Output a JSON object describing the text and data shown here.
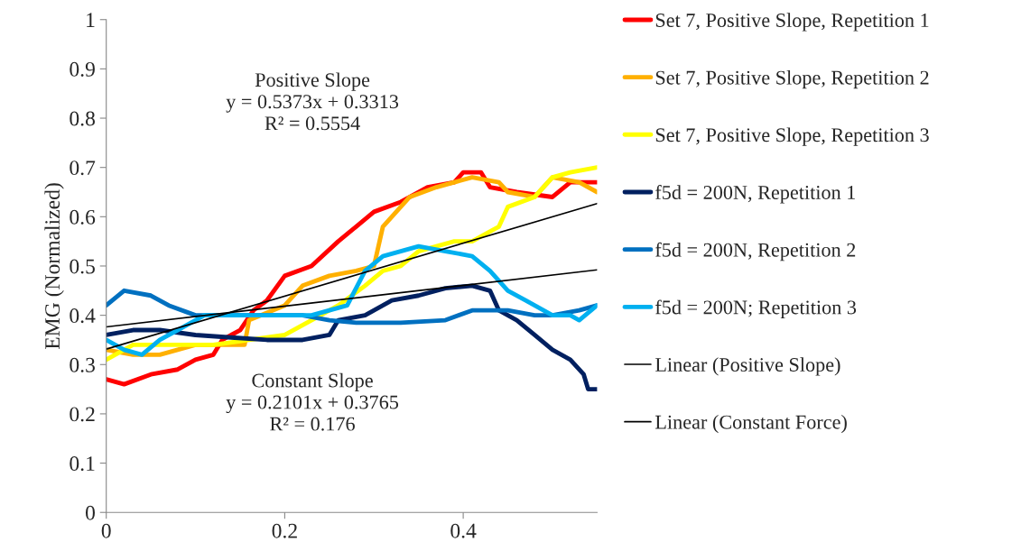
{
  "chart_data": {
    "type": "line",
    "ylabel": "EMG (Normalized)",
    "xlim": [
      0,
      0.55
    ],
    "xticks": [
      0,
      0.2,
      0.4
    ],
    "ylim": [
      0,
      1
    ],
    "yticks": [
      0,
      0.1,
      0.2,
      0.3,
      0.4,
      0.5,
      0.6,
      0.7,
      0.8,
      0.9,
      1
    ],
    "grid": false,
    "legend": "right",
    "marker": "none",
    "annotations": [
      "Positive Slope\ny = 0.5373x + 0.3313\nR² = 0.5554",
      "Constant Slope\ny = 0.2101x + 0.3765\nR² = 0.176"
    ],
    "series": [
      {
        "name": "Set 7, Positive Slope, Repetition 1",
        "color": "#ff0000",
        "x": [
          0,
          0.02,
          0.05,
          0.08,
          0.1,
          0.12,
          0.13,
          0.15,
          0.165,
          0.18,
          0.2,
          0.23,
          0.26,
          0.28,
          0.3,
          0.33,
          0.36,
          0.39,
          0.4,
          0.42,
          0.43,
          0.46,
          0.5,
          0.52,
          0.55
        ],
        "values": [
          0.27,
          0.26,
          0.28,
          0.29,
          0.31,
          0.32,
          0.35,
          0.37,
          0.41,
          0.43,
          0.48,
          0.5,
          0.55,
          0.58,
          0.61,
          0.63,
          0.66,
          0.67,
          0.69,
          0.69,
          0.66,
          0.65,
          0.64,
          0.67,
          0.67
        ]
      },
      {
        "name": "Set 7, Positive Slope, Repetition 2",
        "color": "#ffb000",
        "x": [
          0,
          0.03,
          0.06,
          0.1,
          0.12,
          0.155,
          0.16,
          0.2,
          0.22,
          0.25,
          0.28,
          0.3,
          0.31,
          0.32,
          0.34,
          0.37,
          0.39,
          0.41,
          0.44,
          0.45,
          0.48,
          0.5,
          0.53,
          0.55
        ],
        "values": [
          0.33,
          0.32,
          0.32,
          0.34,
          0.34,
          0.34,
          0.39,
          0.42,
          0.46,
          0.48,
          0.49,
          0.5,
          0.58,
          0.6,
          0.64,
          0.66,
          0.67,
          0.68,
          0.67,
          0.65,
          0.64,
          0.68,
          0.67,
          0.65
        ]
      },
      {
        "name": "Set 7, Positive Slope, Repetition 3",
        "color": "#ffff00",
        "x": [
          0,
          0.03,
          0.08,
          0.12,
          0.16,
          0.2,
          0.23,
          0.26,
          0.29,
          0.31,
          0.33,
          0.35,
          0.37,
          0.39,
          0.41,
          0.44,
          0.45,
          0.48,
          0.5,
          0.52,
          0.55
        ],
        "values": [
          0.31,
          0.34,
          0.34,
          0.34,
          0.35,
          0.36,
          0.39,
          0.42,
          0.46,
          0.49,
          0.5,
          0.53,
          0.54,
          0.55,
          0.55,
          0.58,
          0.62,
          0.64,
          0.68,
          0.69,
          0.7
        ]
      },
      {
        "name": "f5d = 200N, Repetition 1",
        "color": "#002060",
        "x": [
          0,
          0.03,
          0.06,
          0.1,
          0.14,
          0.18,
          0.22,
          0.25,
          0.26,
          0.29,
          0.32,
          0.35,
          0.38,
          0.41,
          0.43,
          0.44,
          0.46,
          0.48,
          0.5,
          0.52,
          0.535,
          0.54,
          0.55
        ],
        "values": [
          0.36,
          0.37,
          0.37,
          0.36,
          0.355,
          0.35,
          0.35,
          0.36,
          0.39,
          0.4,
          0.43,
          0.44,
          0.455,
          0.46,
          0.45,
          0.41,
          0.39,
          0.36,
          0.33,
          0.31,
          0.28,
          0.25,
          0.25
        ]
      },
      {
        "name": "f5d = 200N, Repetition 2",
        "color": "#0070c0",
        "x": [
          0,
          0.02,
          0.05,
          0.07,
          0.1,
          0.14,
          0.18,
          0.22,
          0.25,
          0.28,
          0.33,
          0.38,
          0.41,
          0.45,
          0.48,
          0.5,
          0.53,
          0.55
        ],
        "values": [
          0.42,
          0.45,
          0.44,
          0.42,
          0.4,
          0.4,
          0.4,
          0.4,
          0.39,
          0.385,
          0.385,
          0.39,
          0.41,
          0.41,
          0.4,
          0.4,
          0.41,
          0.42
        ]
      },
      {
        "name": "f5d = 200N; Repetition 3",
        "color": "#00b0f0",
        "x": [
          0,
          0.02,
          0.04,
          0.06,
          0.08,
          0.11,
          0.15,
          0.19,
          0.23,
          0.27,
          0.29,
          0.31,
          0.35,
          0.38,
          0.41,
          0.43,
          0.45,
          0.47,
          0.5,
          0.52,
          0.53,
          0.55
        ],
        "values": [
          0.35,
          0.33,
          0.32,
          0.35,
          0.37,
          0.4,
          0.4,
          0.4,
          0.4,
          0.42,
          0.49,
          0.52,
          0.54,
          0.53,
          0.52,
          0.49,
          0.45,
          0.43,
          0.4,
          0.4,
          0.39,
          0.42
        ]
      },
      {
        "name": "Linear (Positive Slope)",
        "color": "#000000",
        "x": [
          0,
          0.55
        ],
        "values": [
          0.3313,
          0.6268
        ]
      },
      {
        "name": "Linear (Constant Force)",
        "color": "#000000",
        "x": [
          0,
          0.55
        ],
        "values": [
          0.3765,
          0.4921
        ]
      }
    ]
  }
}
